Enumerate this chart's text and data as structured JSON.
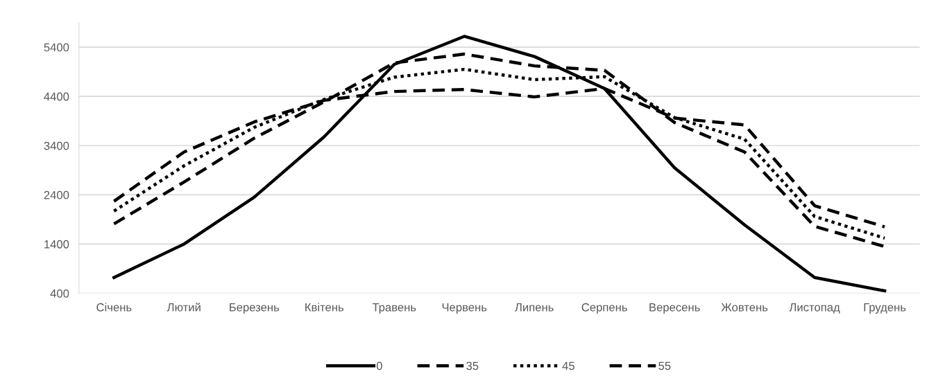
{
  "chart_data": {
    "type": "line",
    "categories": [
      "Січень",
      "Лютий",
      "Березень",
      "Квітень",
      "Травень",
      "Червень",
      "Липень",
      "Серпень",
      "Вересень",
      "Жовтень",
      "Листопад",
      "Грудень"
    ],
    "series": [
      {
        "name": "0",
        "color": "#000000",
        "line_style": "solid",
        "values": [
          720,
          1400,
          2350,
          3580,
          5050,
          5620,
          5210,
          4560,
          2950,
          1790,
          720,
          450
        ]
      },
      {
        "name": "35",
        "color": "#000000",
        "line_style": "dashed",
        "values": [
          1810,
          2660,
          3550,
          4290,
          5080,
          5260,
          5020,
          4930,
          3870,
          3270,
          1760,
          1350
        ]
      },
      {
        "name": "45",
        "color": "#000000",
        "line_style": "dotted",
        "values": [
          2070,
          2990,
          3770,
          4340,
          4790,
          4950,
          4740,
          4800,
          3970,
          3530,
          1960,
          1520
        ]
      },
      {
        "name": "55",
        "color": "#000000",
        "line_style": "dashed",
        "values": [
          2270,
          3270,
          3880,
          4320,
          4500,
          4540,
          4390,
          4560,
          3960,
          3820,
          2180,
          1750
        ]
      }
    ],
    "ylim": [
      400,
      5900
    ],
    "yticks": [
      400,
      1400,
      2400,
      3400,
      4400,
      5400
    ],
    "grid": "y",
    "legend": "bottom",
    "marker": "none"
  }
}
